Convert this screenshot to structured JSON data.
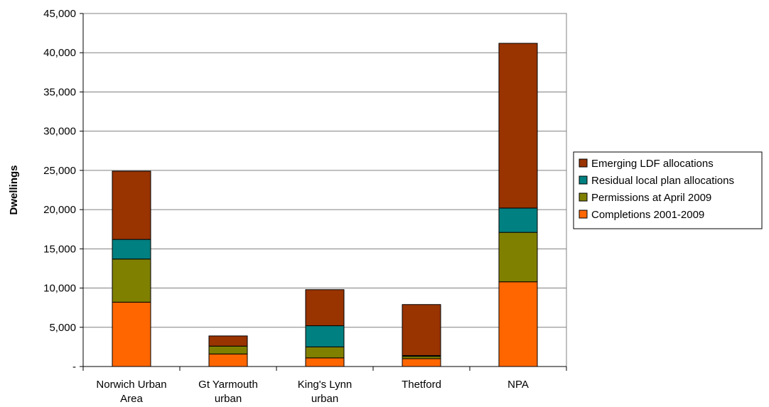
{
  "chart_data": {
    "type": "bar",
    "stacked": true,
    "ylabel": "Dwellings",
    "xlabel": "",
    "title": "",
    "ylim": [
      0,
      45000
    ],
    "yticks": [
      0,
      5000,
      10000,
      15000,
      20000,
      25000,
      30000,
      35000,
      40000,
      45000
    ],
    "ytick_labels": [
      "-",
      "5,000",
      "10,000",
      "15,000",
      "20,000",
      "25,000",
      "30,000",
      "35,000",
      "40,000",
      "45,000"
    ],
    "categories": [
      [
        "Norwich Urban",
        "Area"
      ],
      [
        "Gt Yarmouth",
        "urban"
      ],
      [
        "King's Lynn",
        "urban"
      ],
      [
        "Thetford"
      ],
      [
        "NPA"
      ]
    ],
    "series": [
      {
        "name": "Completions 2001-2009",
        "color": "#FF6600",
        "values": [
          8200,
          1600,
          1100,
          1000,
          10800
        ]
      },
      {
        "name": "Permissions at April 2009",
        "color": "#808000",
        "values": [
          5500,
          1000,
          1400,
          300,
          6300
        ]
      },
      {
        "name": "Residual local plan allocations",
        "color": "#008080",
        "values": [
          2500,
          0,
          2700,
          100,
          3100
        ]
      },
      {
        "name": "Emerging LDF allocations",
        "color": "#993300",
        "values": [
          8700,
          1300,
          4600,
          6500,
          21000
        ]
      }
    ],
    "grid": true,
    "legend_position": "right"
  }
}
